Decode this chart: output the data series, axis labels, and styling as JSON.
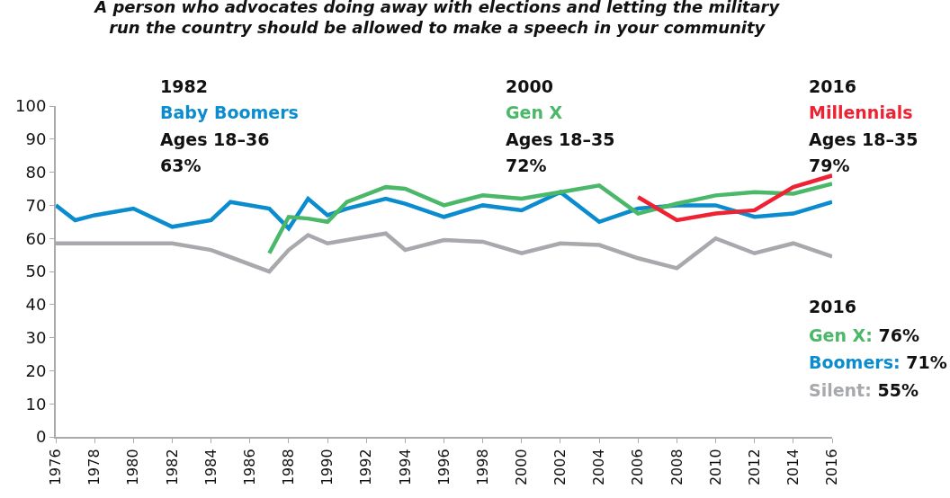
{
  "chart_data": {
    "type": "line",
    "title": "A person who advocates doing away with elections and letting the military\nrun the country should be allowed to make a speech in your community",
    "series": [
      {
        "color": "#a7a9ac",
        "x": [
          1976,
          1977,
          1980,
          1982,
          1984,
          1987,
          1988,
          1989,
          1990,
          1991,
          1993,
          1994,
          1996,
          1998,
          2000,
          2002,
          2004,
          2006,
          2008,
          2010,
          2012,
          2014,
          2016
        ],
        "values": [
          58.5,
          58.5,
          58.5,
          58.5,
          56.5,
          50,
          56.5,
          61,
          58.5,
          59.5,
          61.5,
          56.5,
          59.5,
          59,
          55.5,
          58.5,
          58,
          54,
          51,
          60,
          55.5,
          58.5,
          54.5
        ]
      },
      {
        "color": "#0a8ccf",
        "x": [
          1976,
          1977,
          1978,
          1980,
          1982,
          1984,
          1985,
          1987,
          1988,
          1989,
          1990,
          1991,
          1993,
          1994,
          1996,
          1998,
          2000,
          2002,
          2004,
          2006,
          2008,
          2010,
          2012,
          2014,
          2016
        ],
        "values": [
          70,
          65.5,
          67,
          69,
          63.5,
          65.5,
          71,
          69,
          63,
          72,
          67,
          69,
          72,
          70.5,
          66.5,
          70,
          68.5,
          74,
          65,
          69,
          70,
          70,
          66.5,
          67.5,
          71
        ]
      },
      {
        "color": "#4bb869",
        "x": [
          1987,
          1988,
          1989,
          1990,
          1991,
          1993,
          1994,
          1996,
          1998,
          2000,
          2002,
          2004,
          2006,
          2008,
          2010,
          2012,
          2014,
          2016
        ],
        "values": [
          55.5,
          66.5,
          66,
          65,
          71,
          75.5,
          75,
          70,
          73,
          72,
          74,
          76,
          67.5,
          70.5,
          73,
          74,
          73.5,
          76.5
        ]
      },
      {
        "color": "#ee2233",
        "x": [
          2006,
          2008,
          2010,
          2012,
          2014,
          2016
        ],
        "values": [
          72.5,
          65.5,
          67.5,
          68.5,
          75.5,
          79
        ]
      }
    ],
    "annotations": [
      "1982",
      "Baby Boomers",
      "Ages 18–36",
      "63%",
      "2000",
      "Gen X",
      "Ages 18–35",
      "72%",
      "2016",
      "Millennials",
      "Ages 18–35",
      "79%",
      "2016",
      "Gen X:",
      "76%",
      "Boomers:",
      "71%",
      "Silent:",
      "55%"
    ],
    "xlim": [
      1976,
      2016
    ],
    "xticks": [
      1976,
      1978,
      1980,
      1982,
      1984,
      1986,
      1988,
      1990,
      1992,
      1994,
      1996,
      1998,
      2000,
      2002,
      2004,
      2006,
      2008,
      2010,
      2012,
      2014,
      2016
    ],
    "ylim": [
      0,
      100
    ],
    "yticks": [
      0,
      10,
      20,
      30,
      40,
      50,
      60,
      70,
      80,
      90,
      100
    ],
    "grid": false
  }
}
